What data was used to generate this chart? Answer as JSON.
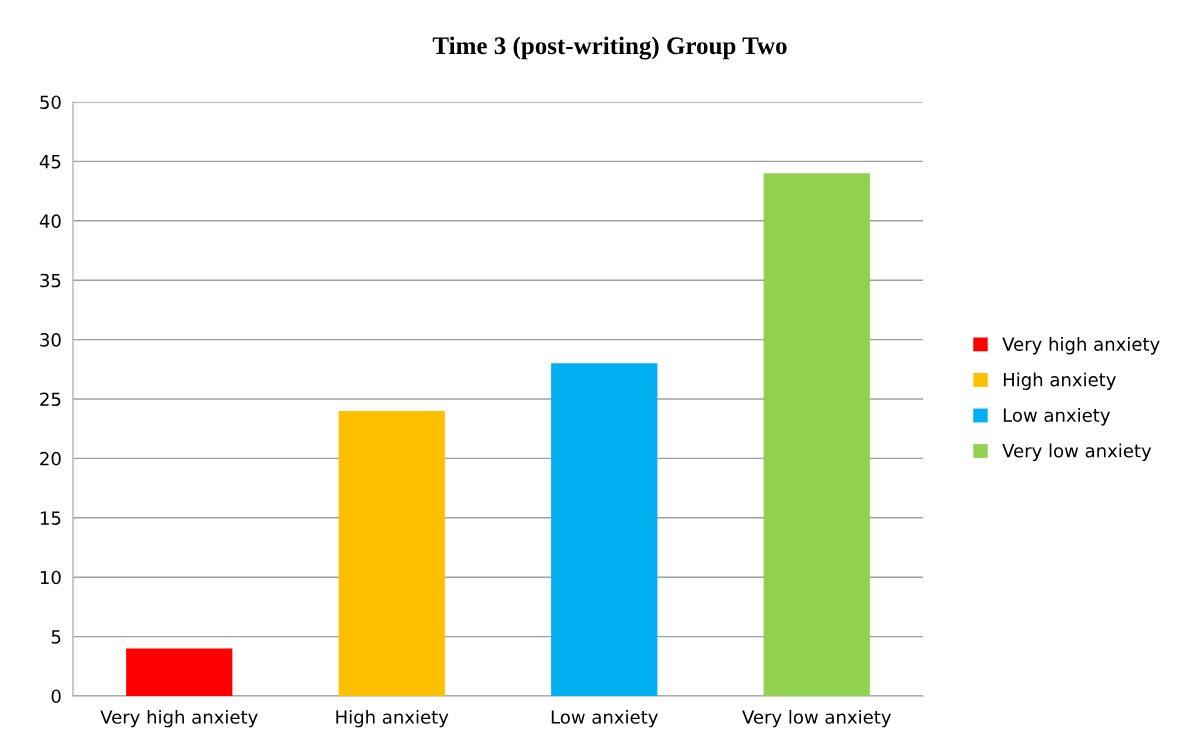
{
  "chart_data": {
    "type": "bar",
    "title": "Time 3 (post-writing) Group Two",
    "categories": [
      "Very high anxiety",
      "High anxiety",
      "Low anxiety",
      "Very low anxiety"
    ],
    "series": [
      {
        "name": "Very high anxiety",
        "color": "#ff0000",
        "values": [
          4,
          null,
          null,
          null
        ]
      },
      {
        "name": "High anxiety",
        "color": "#ffc000",
        "values": [
          null,
          24,
          null,
          null
        ]
      },
      {
        "name": "Low anxiety",
        "color": "#00b0f0",
        "values": [
          null,
          null,
          28,
          null
        ]
      },
      {
        "name": "Very low anxiety",
        "color": "#92d050",
        "values": [
          null,
          null,
          null,
          44
        ]
      }
    ],
    "ylim": [
      0,
      50
    ],
    "yticks": [
      0,
      5,
      10,
      15,
      20,
      25,
      30,
      35,
      40,
      45,
      50
    ],
    "grid": "y",
    "legend": "right"
  }
}
